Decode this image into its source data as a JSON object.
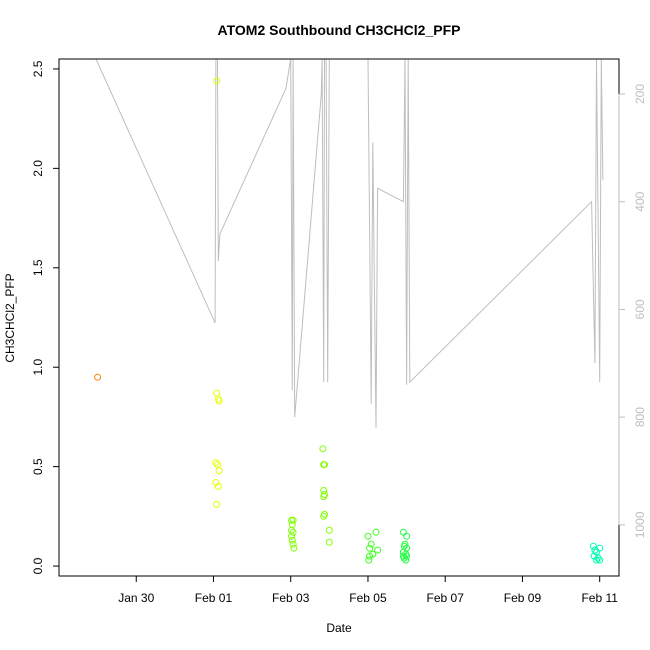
{
  "chart_data": {
    "type": "scatter",
    "title": "ATOM2 Southbound CH3CHCl2_PFP",
    "xlabel": "Date",
    "ylabel": "CH3CHCl2_PFP",
    "xlim": [
      "2016-01-28T00:00",
      "2016-02-11T12:00"
    ],
    "ylim": [
      -0.05,
      2.55
    ],
    "x_ticks": [
      {
        "date": "2016-01-30",
        "label": "Jan 30"
      },
      {
        "date": "2016-02-01",
        "label": "Feb 01"
      },
      {
        "date": "2016-02-03",
        "label": "Feb 03"
      },
      {
        "date": "2016-02-05",
        "label": "Feb 05"
      },
      {
        "date": "2016-02-07",
        "label": "Feb 07"
      },
      {
        "date": "2016-02-09",
        "label": "Feb 09"
      },
      {
        "date": "2016-02-11",
        "label": "Feb 11"
      }
    ],
    "y_ticks": [
      {
        "value": 0.0,
        "label": "0.0"
      },
      {
        "value": 0.5,
        "label": "0.5"
      },
      {
        "value": 1.0,
        "label": "1.0"
      },
      {
        "value": 1.5,
        "label": "1.5"
      },
      {
        "value": 2.0,
        "label": "2.0"
      },
      {
        "value": 2.5,
        "label": "2.5"
      }
    ],
    "y2lim": [
      1095,
      135
    ],
    "y2_ticks": [
      {
        "value": 200,
        "label": "200"
      },
      {
        "value": 400,
        "label": "400"
      },
      {
        "value": 600,
        "label": "600"
      },
      {
        "value": 800,
        "label": "800"
      },
      {
        "value": 1000,
        "label": "1000"
      }
    ],
    "grid": false,
    "points": [
      {
        "x": "2016-01-29T00:00",
        "y": 0.95,
        "color": "#ff8000"
      },
      {
        "x": "2016-02-01T02:00",
        "y": 2.44,
        "color": "#e6ff00"
      },
      {
        "x": "2016-02-01T02:00",
        "y": 0.87,
        "color": "#e6ff00"
      },
      {
        "x": "2016-02-01T03:00",
        "y": 0.84,
        "color": "#e6ff00"
      },
      {
        "x": "2016-02-01T03:30",
        "y": 0.83,
        "color": "#e6ff00"
      },
      {
        "x": "2016-02-01T01:30",
        "y": 0.52,
        "color": "#e6ff00"
      },
      {
        "x": "2016-02-01T02:30",
        "y": 0.51,
        "color": "#e6ff00"
      },
      {
        "x": "2016-02-01T03:30",
        "y": 0.48,
        "color": "#e6ff00"
      },
      {
        "x": "2016-02-01T01:30",
        "y": 0.42,
        "color": "#e6ff00"
      },
      {
        "x": "2016-02-01T03:00",
        "y": 0.4,
        "color": "#e6ff00"
      },
      {
        "x": "2016-02-01T02:00",
        "y": 0.31,
        "color": "#e6ff00"
      },
      {
        "x": "2016-02-03T00:30",
        "y": 0.23,
        "color": "#80ff00"
      },
      {
        "x": "2016-02-03T01:30",
        "y": 0.23,
        "color": "#80ff00"
      },
      {
        "x": "2016-02-03T01:00",
        "y": 0.21,
        "color": "#80ff00"
      },
      {
        "x": "2016-02-03T00:30",
        "y": 0.18,
        "color": "#80ff00"
      },
      {
        "x": "2016-02-03T01:30",
        "y": 0.17,
        "color": "#80ff00"
      },
      {
        "x": "2016-02-03T00:30",
        "y": 0.15,
        "color": "#80ff00"
      },
      {
        "x": "2016-02-03T01:00",
        "y": 0.13,
        "color": "#80ff00"
      },
      {
        "x": "2016-02-03T01:30",
        "y": 0.11,
        "color": "#80ff00"
      },
      {
        "x": "2016-02-03T02:00",
        "y": 0.09,
        "color": "#80ff00"
      },
      {
        "x": "2016-02-03T20:00",
        "y": 0.59,
        "color": "#80ff00"
      },
      {
        "x": "2016-02-03T20:30",
        "y": 0.51,
        "color": "#80ff00"
      },
      {
        "x": "2016-02-03T21:00",
        "y": 0.51,
        "color": "#80ff00"
      },
      {
        "x": "2016-02-03T20:30",
        "y": 0.38,
        "color": "#80ff00"
      },
      {
        "x": "2016-02-03T21:00",
        "y": 0.36,
        "color": "#80ff00"
      },
      {
        "x": "2016-02-03T20:30",
        "y": 0.35,
        "color": "#80ff00"
      },
      {
        "x": "2016-02-03T21:00",
        "y": 0.26,
        "color": "#80ff00"
      },
      {
        "x": "2016-02-03T20:30",
        "y": 0.25,
        "color": "#80ff00"
      },
      {
        "x": "2016-02-04T00:00",
        "y": 0.18,
        "color": "#80ff00"
      },
      {
        "x": "2016-02-04T00:00",
        "y": 0.12,
        "color": "#80ff00"
      },
      {
        "x": "2016-02-05T00:00",
        "y": 0.15,
        "color": "#40ff20"
      },
      {
        "x": "2016-02-05T02:00",
        "y": 0.11,
        "color": "#40ff20"
      },
      {
        "x": "2016-02-05T05:00",
        "y": 0.17,
        "color": "#40ff20"
      },
      {
        "x": "2016-02-05T01:00",
        "y": 0.09,
        "color": "#40ff20"
      },
      {
        "x": "2016-02-05T06:00",
        "y": 0.08,
        "color": "#40ff20"
      },
      {
        "x": "2016-02-05T03:00",
        "y": 0.06,
        "color": "#40ff20"
      },
      {
        "x": "2016-02-05T01:00",
        "y": 0.05,
        "color": "#40ff20"
      },
      {
        "x": "2016-02-05T00:30",
        "y": 0.03,
        "color": "#40ff20"
      },
      {
        "x": "2016-02-05T22:00",
        "y": 0.17,
        "color": "#20ff40"
      },
      {
        "x": "2016-02-06T00:00",
        "y": 0.15,
        "color": "#20ff40"
      },
      {
        "x": "2016-02-05T23:00",
        "y": 0.11,
        "color": "#20ff40"
      },
      {
        "x": "2016-02-05T22:30",
        "y": 0.1,
        "color": "#20ff40"
      },
      {
        "x": "2016-02-06T00:00",
        "y": 0.09,
        "color": "#20ff40"
      },
      {
        "x": "2016-02-05T22:00",
        "y": 0.07,
        "color": "#20ff40"
      },
      {
        "x": "2016-02-05T23:30",
        "y": 0.06,
        "color": "#20ff40"
      },
      {
        "x": "2016-02-06T00:00",
        "y": 0.05,
        "color": "#20ff40"
      },
      {
        "x": "2016-02-05T22:30",
        "y": 0.04,
        "color": "#20ff40"
      },
      {
        "x": "2016-02-05T23:30",
        "y": 0.03,
        "color": "#20ff40"
      },
      {
        "x": "2016-02-05T22:00",
        "y": 0.05,
        "color": "#20ff40"
      },
      {
        "x": "2016-02-10T20:00",
        "y": 0.1,
        "color": "#00ffb0"
      },
      {
        "x": "2016-02-11T00:00",
        "y": 0.09,
        "color": "#00ffb0"
      },
      {
        "x": "2016-02-10T21:00",
        "y": 0.08,
        "color": "#00ffb0"
      },
      {
        "x": "2016-02-10T22:00",
        "y": 0.07,
        "color": "#00ffb0"
      },
      {
        "x": "2016-02-10T20:30",
        "y": 0.05,
        "color": "#00ffb0"
      },
      {
        "x": "2016-02-10T23:00",
        "y": 0.04,
        "color": "#00ffb0"
      },
      {
        "x": "2016-02-11T00:00",
        "y": 0.03,
        "color": "#00ffb0"
      },
      {
        "x": "2016-02-10T22:00",
        "y": 0.03,
        "color": "#00ffb0"
      }
    ],
    "grey_line": {
      "color": "#bebebe",
      "axis": "right",
      "points": [
        {
          "x": "2016-01-28T23:00",
          "y": 135
        },
        {
          "x": "2016-02-01T01:00",
          "y": 625
        },
        {
          "x": "2016-02-01T01:30",
          "y": 135
        },
        {
          "x": "2016-02-01T02:30",
          "y": 135
        },
        {
          "x": "2016-02-01T03:00",
          "y": 510
        },
        {
          "x": "2016-02-01T04:00",
          "y": 460
        },
        {
          "x": "2016-02-02T21:00",
          "y": 190
        },
        {
          "x": "2016-02-03T00:00",
          "y": 135
        },
        {
          "x": "2016-02-03T01:00",
          "y": 750
        },
        {
          "x": "2016-02-03T01:30",
          "y": 135
        },
        {
          "x": "2016-02-03T02:30",
          "y": 800
        },
        {
          "x": "2016-02-03T19:00",
          "y": 200
        },
        {
          "x": "2016-02-03T19:30",
          "y": 135
        },
        {
          "x": "2016-02-03T20:30",
          "y": 735
        },
        {
          "x": "2016-02-03T21:00",
          "y": 135
        },
        {
          "x": "2016-02-03T22:00",
          "y": 135
        },
        {
          "x": "2016-02-03T23:00",
          "y": 735
        },
        {
          "x": "2016-02-04T00:00",
          "y": 135
        },
        {
          "x": "2016-02-05T00:00",
          "y": 135
        },
        {
          "x": "2016-02-05T02:00",
          "y": 775
        },
        {
          "x": "2016-02-05T03:00",
          "y": 290
        },
        {
          "x": "2016-02-05T05:00",
          "y": 820
        },
        {
          "x": "2016-02-05T06:00",
          "y": 375
        },
        {
          "x": "2016-02-05T22:00",
          "y": 400
        },
        {
          "x": "2016-02-05T23:00",
          "y": 135
        },
        {
          "x": "2016-02-06T00:00",
          "y": 740
        },
        {
          "x": "2016-02-06T01:00",
          "y": 135
        },
        {
          "x": "2016-02-06T02:00",
          "y": 735
        },
        {
          "x": "2016-02-10T19:00",
          "y": 400
        },
        {
          "x": "2016-02-10T21:00",
          "y": 700
        },
        {
          "x": "2016-02-10T22:00",
          "y": 135
        },
        {
          "x": "2016-02-11T00:00",
          "y": 735
        },
        {
          "x": "2016-02-11T01:00",
          "y": 135
        },
        {
          "x": "2016-02-11T02:00",
          "y": 360
        }
      ]
    }
  }
}
